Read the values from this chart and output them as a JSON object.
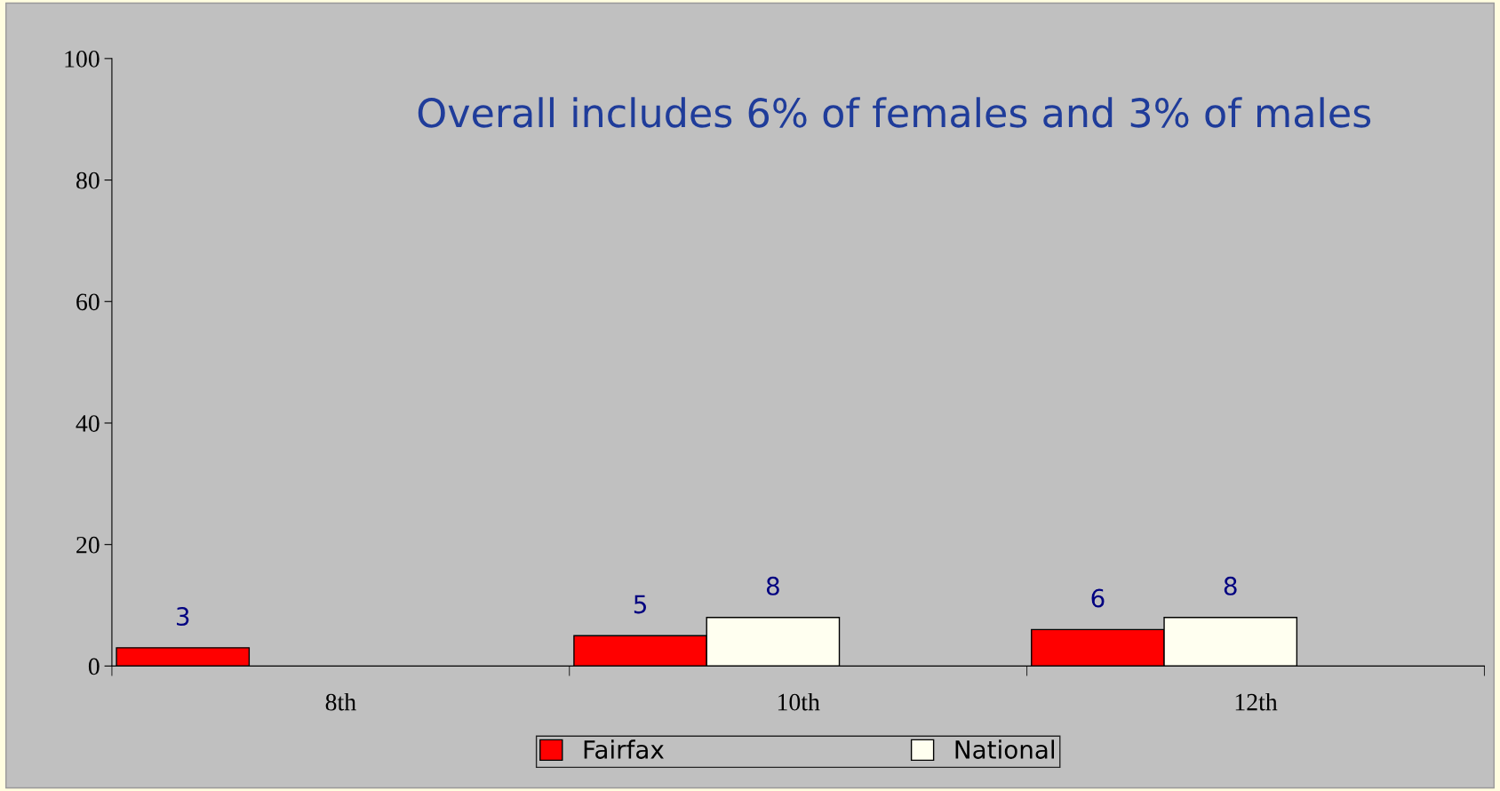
{
  "chart_data": {
    "type": "bar",
    "categories": [
      "8th",
      "10th",
      "12th"
    ],
    "series": [
      {
        "name": "Fairfax",
        "color": "#ff0000",
        "values": [
          3,
          5,
          6
        ]
      },
      {
        "name": "National",
        "color": "#fffff0",
        "values": [
          null,
          8,
          8
        ]
      }
    ],
    "ylim": [
      0,
      100
    ],
    "yticks": [
      0,
      20,
      40,
      60,
      80,
      100
    ],
    "annotations": [
      "Overall includes 6% of females and 3% of males"
    ],
    "data_labels": true,
    "grid": false,
    "legend": "bottom"
  }
}
